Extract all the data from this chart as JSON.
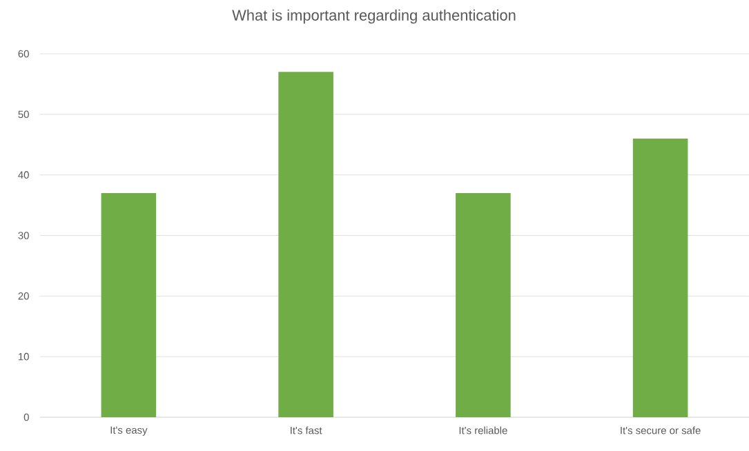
{
  "chart_data": {
    "type": "bar",
    "title": "What is important regarding authentication",
    "categories": [
      "It's easy",
      "It's fast",
      "It's reliable",
      "It's secure or safe"
    ],
    "values": [
      37,
      57,
      37,
      46
    ],
    "color": "#70ad47",
    "ylim": [
      0,
      60
    ],
    "yticks": [
      0,
      10,
      20,
      30,
      40,
      50,
      60
    ],
    "grid": "y"
  }
}
